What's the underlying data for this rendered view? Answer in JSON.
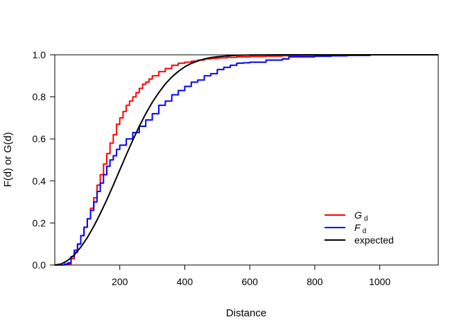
{
  "chart_data": {
    "type": "line",
    "title": "",
    "xlabel": "Distance",
    "ylabel": "F(d) or G(d)",
    "xlim": [
      0,
      1180
    ],
    "ylim": [
      0,
      1.0
    ],
    "xticks": [
      200,
      400,
      600,
      800,
      1000
    ],
    "yticks": [
      0.0,
      0.2,
      0.4,
      0.6,
      0.8,
      1.0
    ],
    "xtick_labels": [
      "200",
      "400",
      "600",
      "800",
      "1000"
    ],
    "ytick_labels": [
      "0.0",
      "0.2",
      "0.4",
      "0.6",
      "0.8",
      "1.0"
    ],
    "grid": false,
    "legend_position": "bottom-right",
    "series": [
      {
        "name": "G",
        "subscript": "d",
        "color": "#ff0000",
        "step": true,
        "x": [
          0,
          30,
          50,
          60,
          70,
          80,
          90,
          100,
          110,
          120,
          130,
          140,
          150,
          160,
          170,
          180,
          190,
          200,
          210,
          220,
          230,
          240,
          250,
          260,
          270,
          280,
          290,
          300,
          320,
          340,
          360,
          380,
          400,
          420,
          440,
          460,
          480,
          500,
          530,
          560,
          600,
          650,
          700,
          750,
          800,
          900,
          1180
        ],
        "y": [
          0,
          0.005,
          0.03,
          0.06,
          0.1,
          0.14,
          0.18,
          0.22,
          0.27,
          0.32,
          0.38,
          0.43,
          0.48,
          0.53,
          0.58,
          0.62,
          0.67,
          0.7,
          0.73,
          0.76,
          0.78,
          0.8,
          0.82,
          0.84,
          0.86,
          0.87,
          0.885,
          0.9,
          0.92,
          0.935,
          0.95,
          0.96,
          0.965,
          0.97,
          0.975,
          0.98,
          0.983,
          0.985,
          0.988,
          0.99,
          0.992,
          0.994,
          0.996,
          0.997,
          0.998,
          1.0,
          1.0
        ]
      },
      {
        "name": "F",
        "subscript": "d",
        "color": "#0000ff",
        "step": true,
        "x": [
          0,
          30,
          40,
          50,
          60,
          70,
          80,
          90,
          100,
          110,
          120,
          130,
          140,
          150,
          160,
          170,
          180,
          190,
          200,
          220,
          240,
          260,
          280,
          300,
          320,
          340,
          360,
          380,
          400,
          420,
          440,
          460,
          480,
          500,
          520,
          540,
          560,
          580,
          600,
          650,
          700,
          720,
          750,
          800,
          850,
          900,
          970,
          1180
        ],
        "y": [
          0,
          0.005,
          0.01,
          0.04,
          0.07,
          0.1,
          0.14,
          0.18,
          0.22,
          0.26,
          0.3,
          0.35,
          0.39,
          0.43,
          0.47,
          0.5,
          0.52,
          0.55,
          0.57,
          0.6,
          0.63,
          0.66,
          0.69,
          0.72,
          0.76,
          0.78,
          0.81,
          0.83,
          0.85,
          0.87,
          0.88,
          0.9,
          0.91,
          0.93,
          0.94,
          0.95,
          0.96,
          0.962,
          0.965,
          0.975,
          0.98,
          0.99,
          0.99,
          0.993,
          0.995,
          0.997,
          1.0,
          1.0
        ]
      },
      {
        "name": "expected",
        "color": "#000000",
        "step": false,
        "x": [
          0,
          20,
          40,
          60,
          80,
          100,
          120,
          140,
          160,
          180,
          200,
          220,
          240,
          260,
          280,
          300,
          320,
          340,
          360,
          380,
          400,
          420,
          440,
          460,
          480,
          500,
          550,
          600,
          700,
          800,
          1000,
          1180
        ],
        "y": [
          0,
          0.005,
          0.022,
          0.048,
          0.085,
          0.13,
          0.184,
          0.245,
          0.31,
          0.38,
          0.452,
          0.524,
          0.594,
          0.66,
          0.72,
          0.774,
          0.82,
          0.861,
          0.894,
          0.921,
          0.943,
          0.959,
          0.971,
          0.98,
          0.987,
          0.991,
          0.997,
          0.999,
          1.0,
          1.0,
          1.0,
          1.0
        ]
      }
    ]
  }
}
